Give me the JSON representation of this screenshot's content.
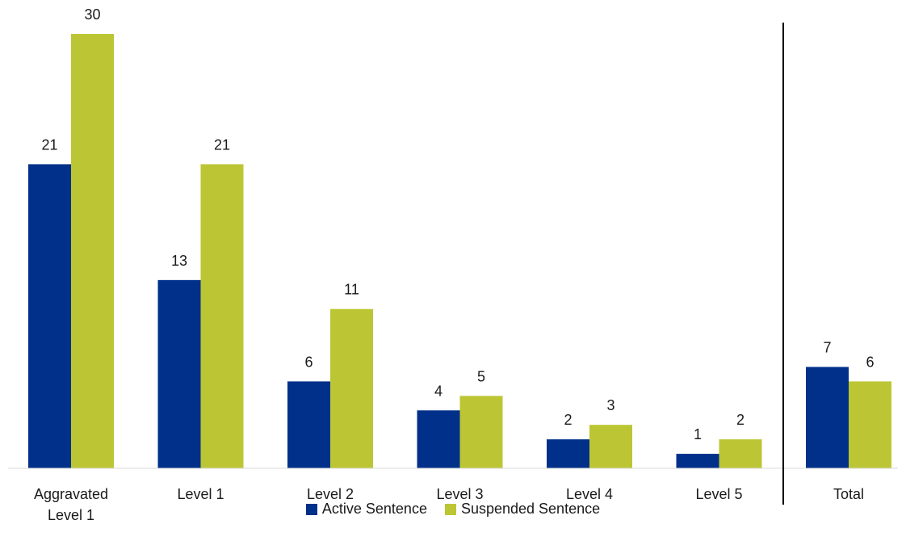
{
  "chart_data": {
    "type": "bar",
    "categories": [
      [
        "Aggravated",
        "Level 1"
      ],
      [
        "Level 1"
      ],
      [
        "Level 2"
      ],
      [
        "Level 3"
      ],
      [
        "Level 4"
      ],
      [
        "Level 5"
      ],
      [
        "Total"
      ]
    ],
    "series": [
      {
        "name": "Active Sentence",
        "color": "#00308a",
        "values": [
          21,
          13,
          6,
          4,
          2,
          1,
          7
        ]
      },
      {
        "name": "Suspended Sentence",
        "color": "#bcc634",
        "values": [
          30,
          21,
          11,
          5,
          3,
          2,
          6
        ]
      }
    ],
    "data_labels": true,
    "ylim": [
      0,
      30
    ],
    "grid": false,
    "separator_before_category": 6,
    "legend_position": "bottom-center"
  }
}
